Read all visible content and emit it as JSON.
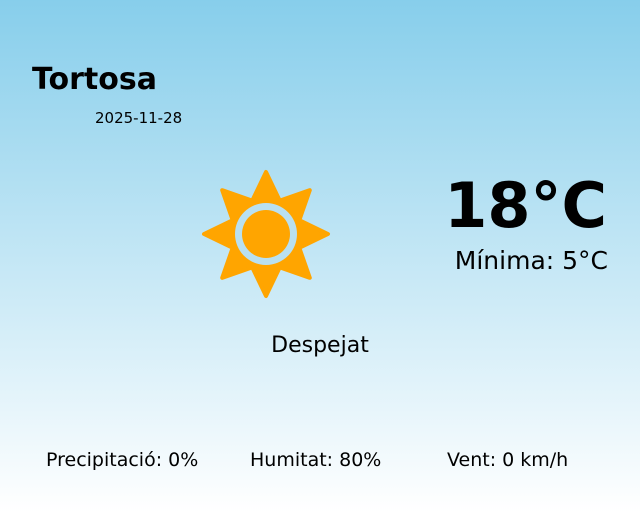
{
  "location": {
    "city": "Tortosa",
    "date": "2025-11-28"
  },
  "current": {
    "temperature": "18°C",
    "minimum": "Mínima: 5°C",
    "condition": "Despejat",
    "icon": "sun-icon",
    "icon_color": "#ffa500"
  },
  "stats": {
    "precipitation": "Precipitació: 0%",
    "humidity": "Humitat: 80%",
    "wind": "Vent: 0 km/h"
  },
  "colors": {
    "background_top": "#87ceeb",
    "background_bottom": "#ffffff"
  }
}
